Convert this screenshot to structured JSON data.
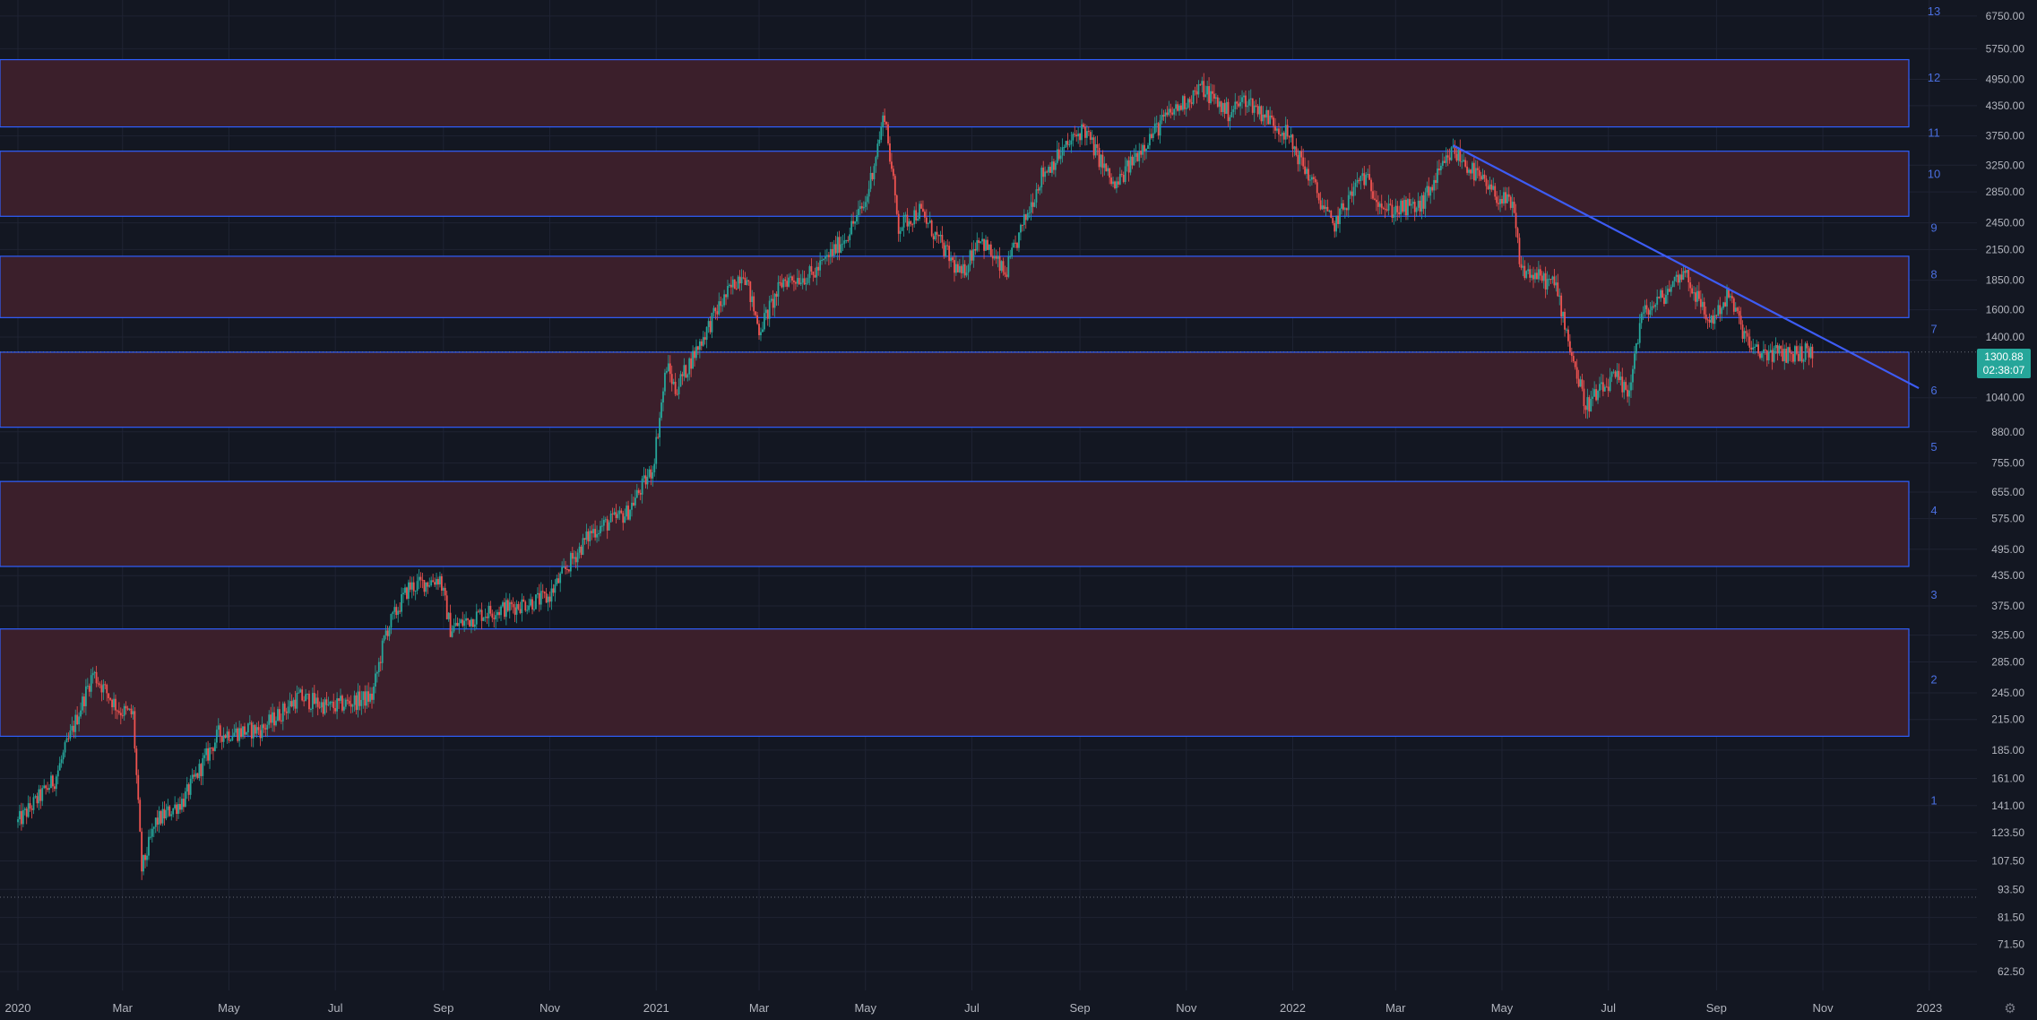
{
  "chart_data": {
    "type": "candlestick",
    "scale": "log",
    "grid": true,
    "ylim": [
      57,
      7300
    ],
    "xlim": [
      "2020-01-01",
      "2023-01-15"
    ],
    "price_axis_labels": [
      "6750.00",
      "5750.00",
      "4950.00",
      "4350.00",
      "3750.00",
      "3250.00",
      "2850.00",
      "2450.00",
      "2150.00",
      "1850.00",
      "1600.00",
      "1400.00",
      "1040.00",
      "880.00",
      "755.00",
      "655.00",
      "575.00",
      "495.00",
      "435.00",
      "375.00",
      "325.00",
      "285.00",
      "245.00",
      "215.00",
      "185.00",
      "161.00",
      "141.00",
      "123.50",
      "107.50",
      "93.50",
      "81.50",
      "71.50",
      "62.50"
    ],
    "time_axis_labels": [
      {
        "date": "2020-01-01",
        "label": "2020"
      },
      {
        "date": "2020-03-01",
        "label": "Mar"
      },
      {
        "date": "2020-05-01",
        "label": "May"
      },
      {
        "date": "2020-07-01",
        "label": "Jul"
      },
      {
        "date": "2020-09-01",
        "label": "Sep"
      },
      {
        "date": "2020-11-01",
        "label": "Nov"
      },
      {
        "date": "2021-01-01",
        "label": "2021"
      },
      {
        "date": "2021-03-01",
        "label": "Mar"
      },
      {
        "date": "2021-05-01",
        "label": "May"
      },
      {
        "date": "2021-07-01",
        "label": "Jul"
      },
      {
        "date": "2021-09-01",
        "label": "Sep"
      },
      {
        "date": "2021-11-01",
        "label": "Nov"
      },
      {
        "date": "2022-01-01",
        "label": "2022"
      },
      {
        "date": "2022-03-01",
        "label": "Mar"
      },
      {
        "date": "2022-05-01",
        "label": "May"
      },
      {
        "date": "2022-07-01",
        "label": "Jul"
      },
      {
        "date": "2022-09-01",
        "label": "Sep"
      },
      {
        "date": "2022-11-01",
        "label": "Nov"
      },
      {
        "date": "2023-01-01",
        "label": "2023"
      }
    ],
    "zones": [
      {
        "low": 900,
        "high": 1300
      },
      {
        "low": 1540,
        "high": 2080
      },
      {
        "low": 2530,
        "high": 3480
      },
      {
        "low": 3920,
        "high": 5450
      },
      {
        "low": 455,
        "high": 690
      },
      {
        "low": 198,
        "high": 335
      }
    ],
    "level_labels": [
      {
        "text": "13",
        "price": 6920
      },
      {
        "text": "12",
        "price": 5000
      },
      {
        "text": "11",
        "price": 3820
      },
      {
        "text": "10",
        "price": 3120
      },
      {
        "text": "9",
        "price": 2400
      },
      {
        "text": "8",
        "price": 1910
      },
      {
        "text": "7",
        "price": 1460
      },
      {
        "text": "6",
        "price": 1080
      },
      {
        "text": "5",
        "price": 820
      },
      {
        "text": "4",
        "price": 600
      },
      {
        "text": "3",
        "price": 397
      },
      {
        "text": "2",
        "price": 262
      },
      {
        "text": "1",
        "price": 145
      }
    ],
    "horizontal_dotted_levels": [
      1300.88,
      90
    ],
    "trendline": {
      "start": {
        "date": "2022-04-03",
        "price": 3580
      },
      "end": {
        "date": "2022-12-26",
        "price": 1090
      }
    },
    "last_price": "1300.88",
    "countdown": "02:38:07",
    "price_anchors": [
      [
        "2020-01-01",
        130
      ],
      [
        "2020-01-22",
        160
      ],
      [
        "2020-02-13",
        270
      ],
      [
        "2020-02-28",
        225
      ],
      [
        "2020-03-07",
        220
      ],
      [
        "2020-03-12",
        103
      ],
      [
        "2020-03-20",
        130
      ],
      [
        "2020-04-05",
        145
      ],
      [
        "2020-04-25",
        200
      ],
      [
        "2020-05-20",
        205
      ],
      [
        "2020-06-10",
        240
      ],
      [
        "2020-06-28",
        228
      ],
      [
        "2020-07-22",
        240
      ],
      [
        "2020-07-30",
        330
      ],
      [
        "2020-08-12",
        410
      ],
      [
        "2020-08-30",
        430
      ],
      [
        "2020-09-05",
        335
      ],
      [
        "2020-09-22",
        360
      ],
      [
        "2020-10-12",
        375
      ],
      [
        "2020-10-31",
        390
      ],
      [
        "2020-11-12",
        460
      ],
      [
        "2020-11-25",
        540
      ],
      [
        "2020-12-15",
        590
      ],
      [
        "2020-12-30",
        735
      ],
      [
        "2021-01-07",
        1220
      ],
      [
        "2021-01-12",
        1080
      ],
      [
        "2021-02-05",
        1600
      ],
      [
        "2021-02-20",
        1950
      ],
      [
        "2021-03-01",
        1450
      ],
      [
        "2021-03-15",
        1850
      ],
      [
        "2021-04-01",
        1900
      ],
      [
        "2021-04-20",
        2300
      ],
      [
        "2021-05-01",
        2700
      ],
      [
        "2021-05-12",
        4200
      ],
      [
        "2021-05-20",
        2400
      ],
      [
        "2021-06-01",
        2600
      ],
      [
        "2021-06-25",
        1880
      ],
      [
        "2021-07-05",
        2300
      ],
      [
        "2021-07-20",
        1900
      ],
      [
        "2021-08-10",
        3100
      ],
      [
        "2021-09-03",
        3900
      ],
      [
        "2021-09-21",
        2900
      ],
      [
        "2021-10-05",
        3500
      ],
      [
        "2021-10-20",
        4100
      ],
      [
        "2021-11-10",
        4750
      ],
      [
        "2021-11-25",
        4200
      ],
      [
        "2021-12-05",
        4500
      ],
      [
        "2021-12-28",
        3800
      ],
      [
        "2022-01-10",
        3100
      ],
      [
        "2022-01-24",
        2400
      ],
      [
        "2022-02-10",
        3100
      ],
      [
        "2022-02-24",
        2600
      ],
      [
        "2022-03-15",
        2650
      ],
      [
        "2022-04-03",
        3500
      ],
      [
        "2022-04-25",
        2850
      ],
      [
        "2022-05-07",
        2650
      ],
      [
        "2022-05-12",
        1950
      ],
      [
        "2022-06-01",
        1800
      ],
      [
        "2022-06-12",
        1200
      ],
      [
        "2022-06-18",
        1000
      ],
      [
        "2022-07-05",
        1150
      ],
      [
        "2022-07-12",
        1050
      ],
      [
        "2022-07-20",
        1550
      ],
      [
        "2022-08-01",
        1700
      ],
      [
        "2022-08-13",
        1950
      ],
      [
        "2022-08-28",
        1500
      ],
      [
        "2022-09-08",
        1720
      ],
      [
        "2022-09-16",
        1450
      ],
      [
        "2022-09-22",
        1300
      ],
      [
        "2022-10-10",
        1290
      ],
      [
        "2022-10-26",
        1300
      ]
    ]
  },
  "colors": {
    "background": "#131722",
    "grid": "#1f2333",
    "up": "#26a69a",
    "down": "#ef5350",
    "zone_fill": "#3b1f2b",
    "zone_border": "#2f5fff",
    "level_label": "#4a6fe0",
    "axis_text": "#b2b5be",
    "trendline": "#3d5cf5",
    "badge": "#26a69a"
  },
  "icons": {
    "settings": "gear-icon"
  }
}
